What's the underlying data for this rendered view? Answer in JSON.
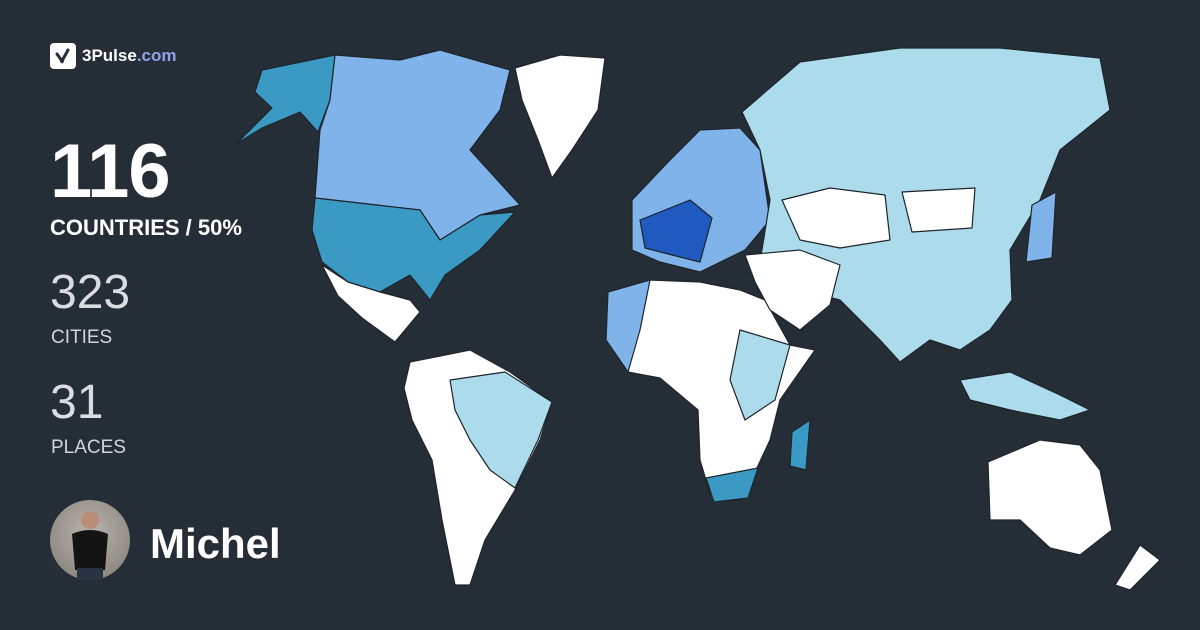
{
  "brand": {
    "name": "3Pulse",
    "domain": ".com",
    "logo_icon": "checkmark-pulse-icon"
  },
  "stats": {
    "countries": {
      "value": "116",
      "label": "COUNTRIES / 50%"
    },
    "cities": {
      "value": "323",
      "label": "CITIES"
    },
    "places": {
      "value": "31",
      "label": "PLACES"
    }
  },
  "user": {
    "name": "Michel",
    "avatar": "user-photo"
  },
  "map": {
    "colors": {
      "background": "#252e36",
      "unvisited": "#ffffff",
      "level1": "#acdcec",
      "level2": "#80b3ea",
      "level3": "#3b9ac4",
      "level4": "#2059c0"
    }
  }
}
